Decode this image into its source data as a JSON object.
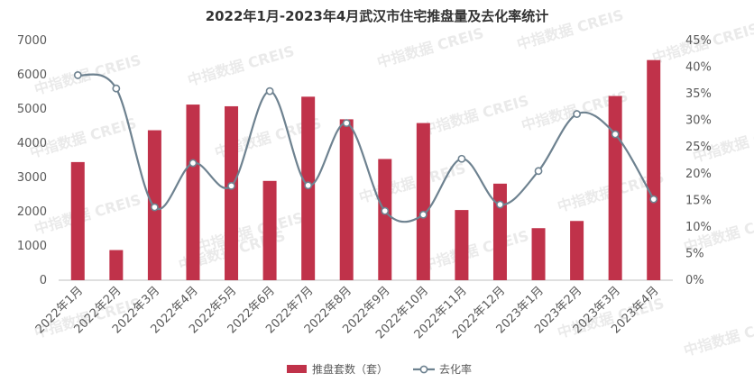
{
  "chart_data": {
    "type": "bar",
    "title": "2022年1月-2023年4月武汉市住宅推盘量及去化率统计",
    "categories": [
      "2022年1月",
      "2022年2月",
      "2022年3月",
      "2022年4月",
      "2022年5月",
      "2022年6月",
      "2022年7月",
      "2022年8月",
      "2022年9月",
      "2022年10月",
      "2022年11月",
      "2022年12月",
      "2023年1月",
      "2023年2月",
      "2023年3月",
      "2023年4月"
    ],
    "series": [
      {
        "name": "推盘套数（套）",
        "type": "bar",
        "axis": "left",
        "color": "#c0324a",
        "values": [
          3450,
          880,
          4380,
          5130,
          5080,
          2900,
          5360,
          4700,
          3540,
          4590,
          2050,
          2820,
          1520,
          1730,
          5380,
          6430
        ]
      },
      {
        "name": "去化率",
        "type": "line",
        "axis": "right",
        "color": "#6e8290",
        "values": [
          0.385,
          0.36,
          0.137,
          0.22,
          0.177,
          0.355,
          0.178,
          0.295,
          0.13,
          0.123,
          0.228,
          0.142,
          0.205,
          0.312,
          0.274,
          0.152
        ]
      }
    ],
    "yleft": {
      "min": 0,
      "max": 7000,
      "ticks": [
        "0",
        "1000",
        "2000",
        "3000",
        "4000",
        "5000",
        "6000",
        "7000"
      ]
    },
    "yright": {
      "min": 0,
      "max": 0.45,
      "ticks": [
        "0%",
        "5%",
        "10%",
        "15%",
        "20%",
        "25%",
        "30%",
        "35%",
        "40%",
        "45%"
      ]
    },
    "legend": {
      "position": "bottom",
      "items": [
        "推盘套数（套）",
        "去化率"
      ]
    },
    "watermark": "中指数据 CREIS",
    "grid": false
  }
}
